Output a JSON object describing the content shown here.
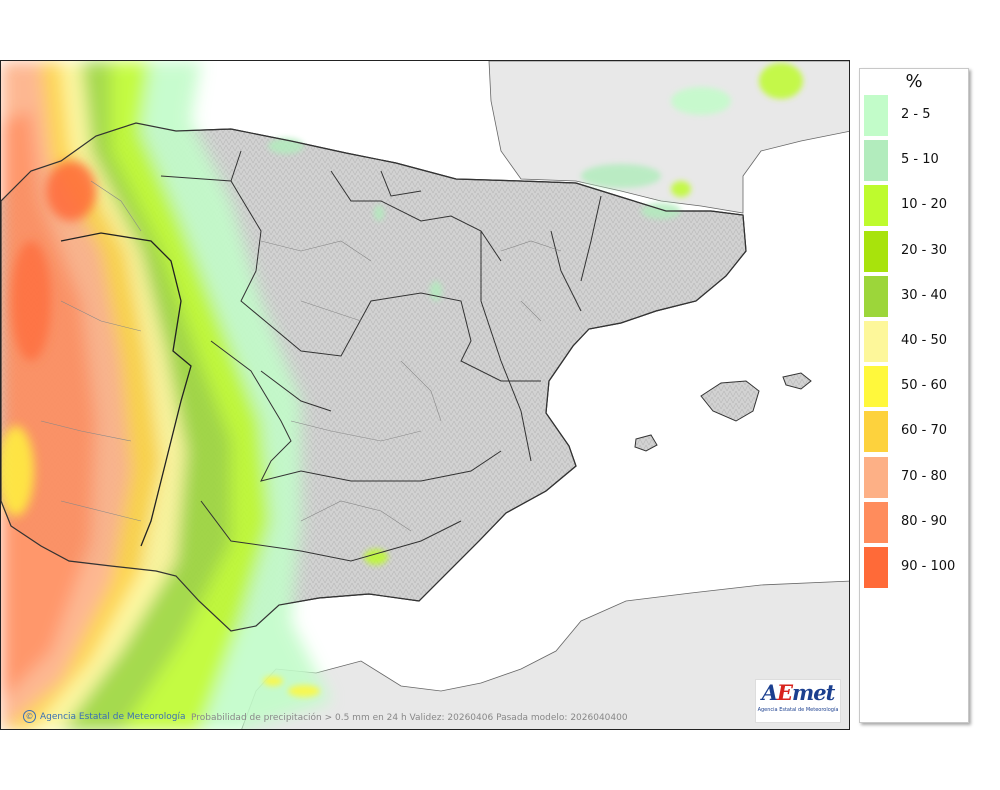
{
  "map": {
    "credit": "Agencia Estatal de Meteorología",
    "info": "Probabilidad de precipitación > 0.5 mm en 24 h Validez: 20260406 Pasada modelo: 2026040400",
    "colors": {
      "sea": "#ffffff",
      "foreign_land": "#e8e8e8",
      "relief": "#cfcfcf",
      "border": "#333333"
    }
  },
  "logo": {
    "text_a": "A",
    "text_e": "E",
    "text_rest": "met",
    "subtitle": "Agencia Estatal de Meteorología"
  },
  "legend": {
    "title": "%",
    "items": [
      {
        "label": "2 - 5",
        "color": "#c2fcc9"
      },
      {
        "label": "5 - 10",
        "color": "#b2ecbd"
      },
      {
        "label": "10 - 20",
        "color": "#befb2d"
      },
      {
        "label": "20 - 30",
        "color": "#a8e30c"
      },
      {
        "label": "30 - 40",
        "color": "#9cd63a"
      },
      {
        "label": "40 - 50",
        "color": "#fdf79a"
      },
      {
        "label": "50 - 60",
        "color": "#fff83c"
      },
      {
        "label": "60 - 70",
        "color": "#fdd23d"
      },
      {
        "label": "70 - 80",
        "color": "#fdb086"
      },
      {
        "label": "80 - 90",
        "color": "#ff8c5c"
      },
      {
        "label": "90 - 100",
        "color": "#ff6a38"
      }
    ]
  }
}
